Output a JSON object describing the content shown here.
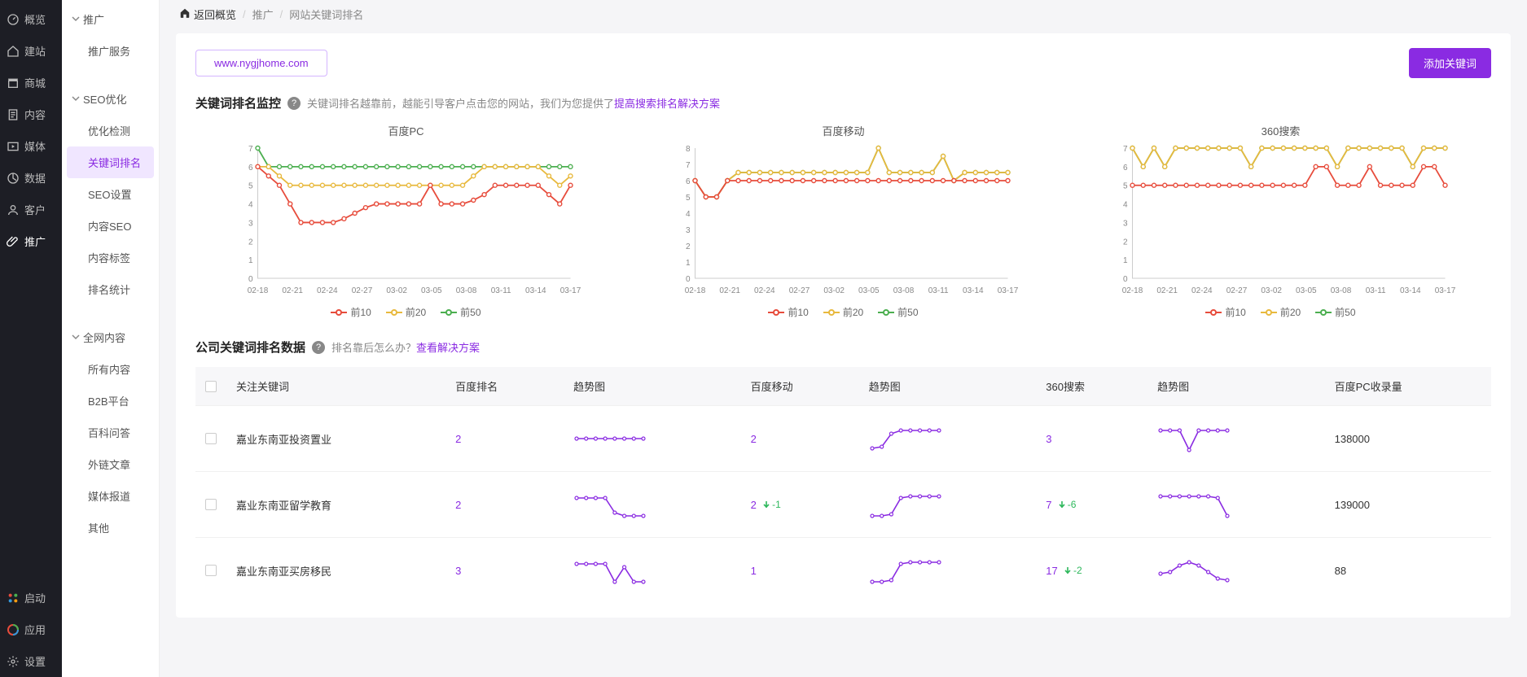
{
  "nav_primary": [
    {
      "label": "概览",
      "icon": "gauge"
    },
    {
      "label": "建站",
      "icon": "home"
    },
    {
      "label": "商城",
      "icon": "shop"
    },
    {
      "label": "内容",
      "icon": "doc"
    },
    {
      "label": "媒体",
      "icon": "media"
    },
    {
      "label": "数据",
      "icon": "data"
    },
    {
      "label": "客户",
      "icon": "user"
    },
    {
      "label": "推广",
      "icon": "clip",
      "active": true
    }
  ],
  "nav_primary_bottom": [
    {
      "label": "启动",
      "icon": "dots"
    },
    {
      "label": "应用",
      "icon": "apps"
    },
    {
      "label": "设置",
      "icon": "gear"
    }
  ],
  "nav_secondary": {
    "groups": [
      {
        "header": "推广",
        "chev": "down",
        "items": [
          "推广服务"
        ]
      },
      {
        "header": "SEO优化",
        "chev": "down",
        "items": [
          "优化检测",
          "关键词排名",
          "SEO设置",
          "内容SEO",
          "内容标签",
          "排名统计"
        ],
        "active_item": "关键词排名"
      },
      {
        "header": "全网内容",
        "chev": "down",
        "items": [
          "所有内容",
          "B2B平台",
          "百科问答",
          "外链文章",
          "媒体报道",
          "其他"
        ]
      }
    ]
  },
  "breadcrumb": {
    "home_icon": "home",
    "home_label": "返回概览",
    "items": [
      "推广",
      "网站关键词排名"
    ]
  },
  "url": "www.nygjhome.com",
  "add_btn": "添加关键词",
  "section1": {
    "title": "关键词排名监控",
    "desc_prefix": "关键词排名越靠前，越能引导客户点击您的网站，我们为您提供了",
    "desc_link": "提高搜索排名解决方案"
  },
  "charts": {
    "x_labels": [
      "02-18",
      "02-21",
      "02-24",
      "02-27",
      "03-02",
      "03-05",
      "03-08",
      "03-11",
      "03-14",
      "03-17"
    ],
    "y_max": 7,
    "y_ticks": [
      0,
      1,
      2,
      3,
      4,
      5,
      6,
      7
    ],
    "legend": [
      {
        "name": "前10",
        "color": "#e74c3c"
      },
      {
        "name": "前20",
        "color": "#e8b93e"
      },
      {
        "name": "前50",
        "color": "#4caf50"
      }
    ],
    "panels": [
      {
        "title": "百度PC",
        "y_max": 7,
        "series": {
          "s10": [
            6,
            5.5,
            5,
            4,
            3,
            3,
            3,
            3,
            3.2,
            3.5,
            3.8,
            4,
            4,
            4,
            4,
            4,
            5,
            4,
            4,
            4,
            4.2,
            4.5,
            5,
            5,
            5,
            5,
            5,
            4.5,
            4,
            5
          ],
          "s20": [
            6,
            6,
            5.5,
            5,
            5,
            5,
            5,
            5,
            5,
            5,
            5,
            5,
            5,
            5,
            5,
            5,
            5,
            5,
            5,
            5,
            5.5,
            6,
            6,
            6,
            6,
            6,
            6,
            5.5,
            5,
            5.5
          ],
          "s50": [
            7,
            6,
            6,
            6,
            6,
            6,
            6,
            6,
            6,
            6,
            6,
            6,
            6,
            6,
            6,
            6,
            6,
            6,
            6,
            6,
            6,
            6,
            6,
            6,
            6,
            6,
            6,
            6,
            6,
            6
          ]
        }
      },
      {
        "title": "百度移动",
        "y_max": 8,
        "y_ticks": [
          0,
          1,
          2,
          3,
          4,
          5,
          6,
          7,
          8
        ],
        "series": {
          "s10": [
            6,
            5,
            5,
            6,
            6,
            6,
            6,
            6,
            6,
            6,
            6,
            6,
            6,
            6,
            6,
            6,
            6,
            6,
            6,
            6,
            6,
            6,
            6,
            6,
            6,
            6,
            6,
            6,
            6,
            6
          ],
          "s20": [
            6,
            5,
            5,
            6,
            6.5,
            6.5,
            6.5,
            6.5,
            6.5,
            6.5,
            6.5,
            6.5,
            6.5,
            6.5,
            6.5,
            6.5,
            6.5,
            8,
            6.5,
            6.5,
            6.5,
            6.5,
            6.5,
            7.5,
            6,
            6.5,
            6.5,
            6.5,
            6.5,
            6.5
          ],
          "s50": [
            6,
            5,
            5,
            6,
            6.5,
            6.5,
            6.5,
            6.5,
            6.5,
            6.5,
            6.5,
            6.5,
            6.5,
            6.5,
            6.5,
            6.5,
            6.5,
            8,
            6.5,
            6.5,
            6.5,
            6.5,
            6.5,
            7.5,
            6,
            6.5,
            6.5,
            6.5,
            6.5,
            6.5
          ]
        }
      },
      {
        "title": "360搜索",
        "y_max": 7,
        "series": {
          "s10": [
            5,
            5,
            5,
            5,
            5,
            5,
            5,
            5,
            5,
            5,
            5,
            5,
            5,
            5,
            5,
            5,
            5,
            6,
            6,
            5,
            5,
            5,
            6,
            5,
            5,
            5,
            5,
            6,
            6,
            5
          ],
          "s20": [
            7,
            6,
            7,
            6,
            7,
            7,
            7,
            7,
            7,
            7,
            7,
            6,
            7,
            7,
            7,
            7,
            7,
            7,
            7,
            6,
            7,
            7,
            7,
            7,
            7,
            7,
            6,
            7,
            7,
            7
          ],
          "s50": [
            7,
            6,
            7,
            6,
            7,
            7,
            7,
            7,
            7,
            7,
            7,
            6,
            7,
            7,
            7,
            7,
            7,
            7,
            7,
            6,
            7,
            7,
            7,
            7,
            7,
            7,
            6,
            7,
            7,
            7
          ]
        }
      }
    ]
  },
  "section2": {
    "title": "公司关键词排名数据",
    "desc_prefix": "排名靠后怎么办？",
    "desc_link": "查看解决方案"
  },
  "table": {
    "columns": [
      "",
      "关注关键词",
      "百度排名",
      "趋势图",
      "百度移动",
      "趋势图",
      "360搜索",
      "趋势图",
      "百度PC收录量"
    ],
    "rows": [
      {
        "kw": "嘉业东南亚投资置业",
        "baidu_pc": "2",
        "baidu_pc_delta": "",
        "spark_pc": [
          20,
          20,
          20,
          20,
          20,
          20,
          20,
          20
        ],
        "baidu_m": "2",
        "baidu_m_delta": "",
        "spark_m": [
          32,
          30,
          14,
          10,
          10,
          10,
          10,
          10
        ],
        "s360": "3",
        "s360_delta": "",
        "spark_360": [
          10,
          10,
          10,
          34,
          10,
          10,
          10,
          10
        ],
        "include": "138000"
      },
      {
        "kw": "嘉业东南亚留学教育",
        "baidu_pc": "2",
        "baidu_pc_delta": "",
        "spark_pc": [
          12,
          12,
          12,
          12,
          30,
          34,
          34,
          34
        ],
        "baidu_m": "2",
        "baidu_m_delta": "-1",
        "spark_m": [
          34,
          34,
          32,
          12,
          10,
          10,
          10,
          10
        ],
        "s360": "7",
        "s360_delta": "-6",
        "spark_360": [
          10,
          10,
          10,
          10,
          10,
          10,
          12,
          34
        ],
        "include": "139000"
      },
      {
        "kw": "嘉业东南亚买房移民",
        "baidu_pc": "3",
        "baidu_pc_delta": "",
        "spark_pc": [
          12,
          12,
          12,
          12,
          34,
          16,
          34,
          34
        ],
        "baidu_m": "1",
        "baidu_m_delta": "",
        "spark_m": [
          34,
          34,
          32,
          12,
          10,
          10,
          10,
          10
        ],
        "s360": "17",
        "s360_delta": "-2",
        "spark_360": [
          24,
          22,
          14,
          10,
          14,
          22,
          30,
          32
        ],
        "include": "88"
      }
    ]
  },
  "colors": {
    "accent": "#8a2be2",
    "red": "#e74c3c",
    "yellow": "#e8b93e",
    "green": "#4caf50"
  }
}
